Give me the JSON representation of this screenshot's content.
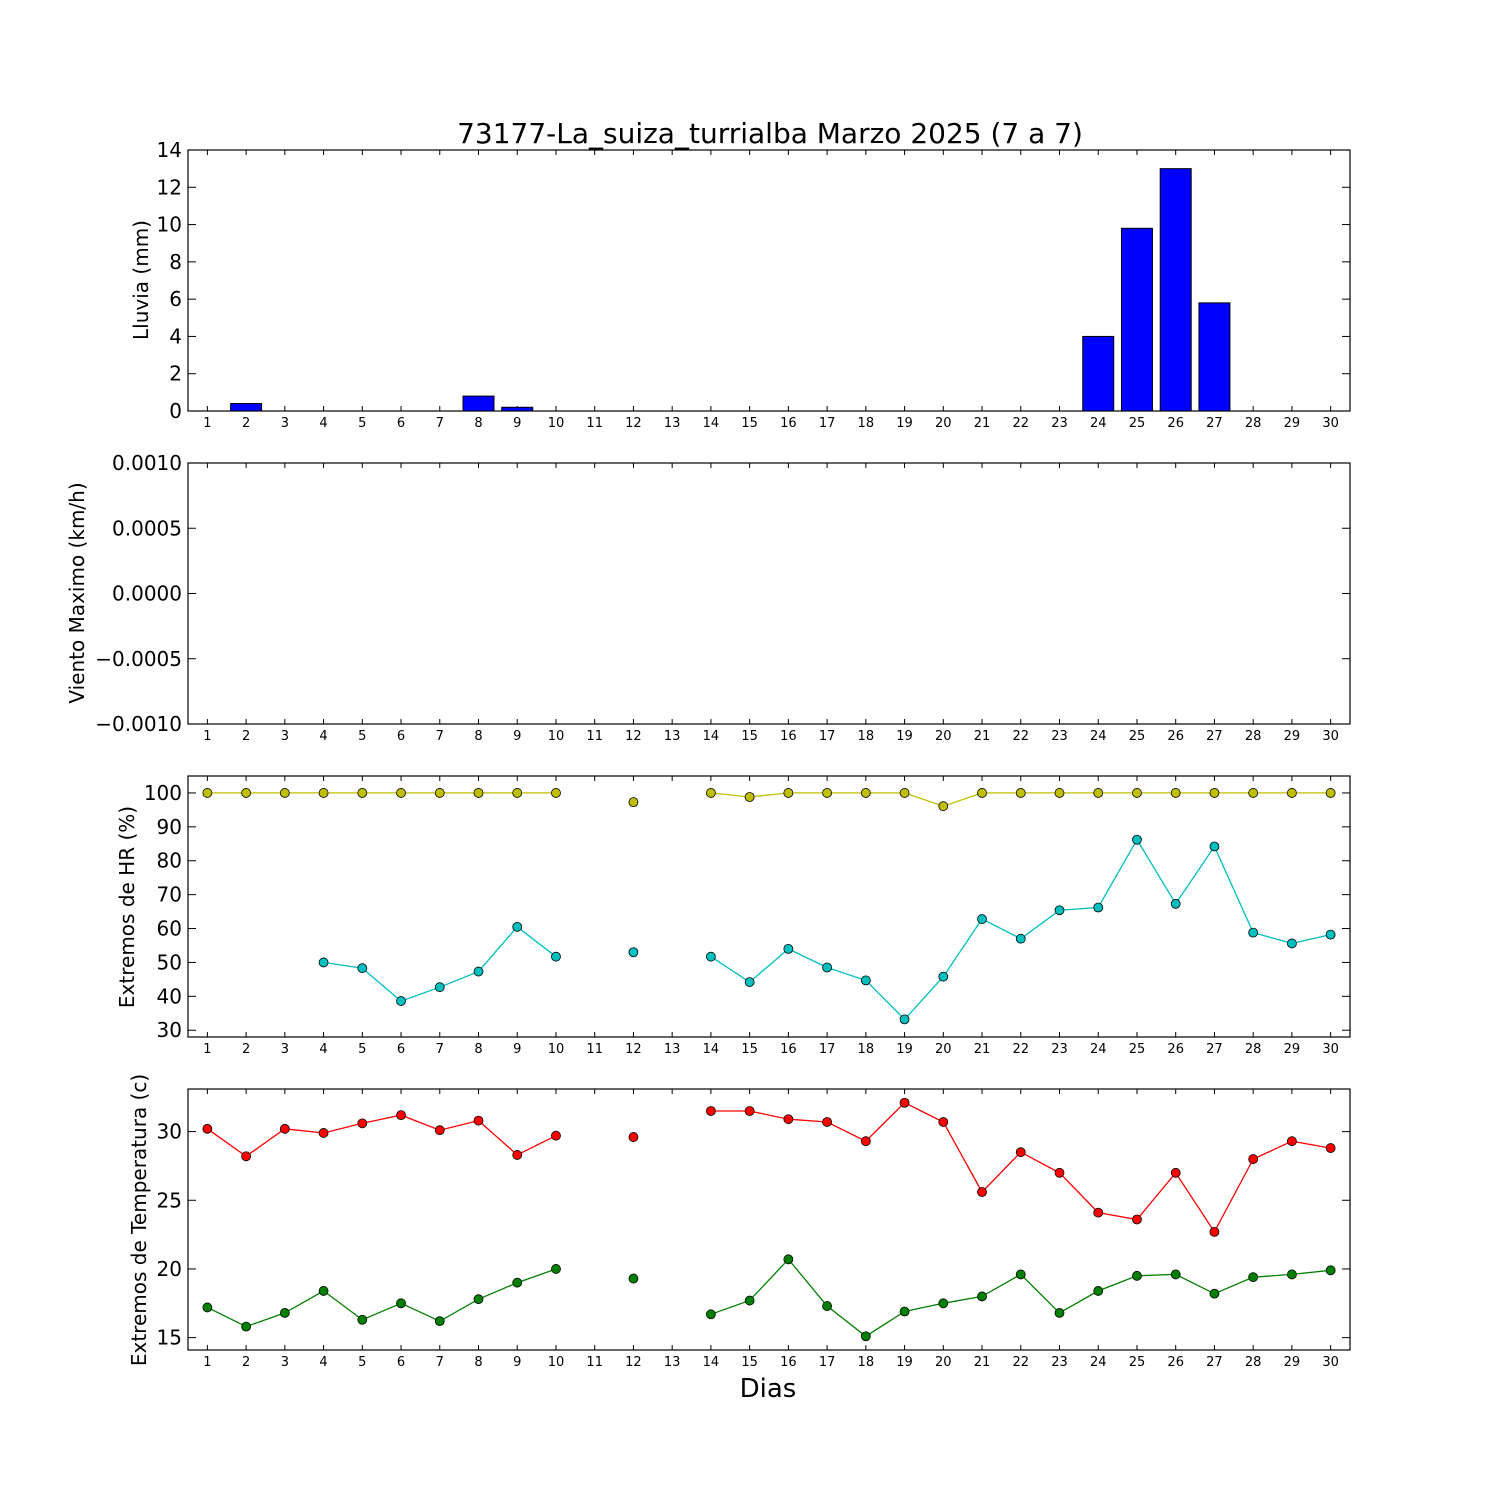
{
  "title": "73177-La_suiza_turrialba Marzo 2025  (7 a 7)",
  "xlabel": "Dias",
  "colors": {
    "bars": "#0000ff",
    "hr_max": "#bfbf00",
    "hr_min": "#00bfbf",
    "temp_max": "#ff0000",
    "temp_min": "#008000"
  },
  "chart_data": [
    {
      "type": "bar",
      "ylabel": "Lluvia (mm)",
      "categories": [
        "1",
        "2",
        "3",
        "4",
        "5",
        "6",
        "7",
        "8",
        "9",
        "10",
        "11",
        "12",
        "13",
        "14",
        "15",
        "16",
        "17",
        "18",
        "19",
        "20",
        "21",
        "22",
        "23",
        "24",
        "25",
        "26",
        "27",
        "28",
        "29",
        "30"
      ],
      "values": [
        0,
        0.4,
        0,
        0,
        0,
        0,
        0,
        0.8,
        0.2,
        0,
        0,
        0,
        0,
        0,
        0,
        0,
        0,
        0,
        0,
        0,
        0,
        0,
        0,
        4.0,
        9.8,
        13.0,
        5.8,
        0,
        0,
        0
      ],
      "ylim": [
        0,
        14
      ],
      "yticks": [
        "0",
        "2",
        "4",
        "6",
        "8",
        "10",
        "12",
        "14"
      ],
      "grid": false
    },
    {
      "type": "line",
      "ylabel": "Viento Maximo (km/h)",
      "categories": [
        "1",
        "2",
        "3",
        "4",
        "5",
        "6",
        "7",
        "8",
        "9",
        "10",
        "11",
        "12",
        "13",
        "14",
        "15",
        "16",
        "17",
        "18",
        "19",
        "20",
        "21",
        "22",
        "23",
        "24",
        "25",
        "26",
        "27",
        "28",
        "29",
        "30"
      ],
      "series": [],
      "ylim": [
        -0.001,
        0.001
      ],
      "yticks": [
        "−0.0010",
        "−0.0005",
        "0.0000",
        "0.0005",
        "0.0010"
      ],
      "grid": false
    },
    {
      "type": "line",
      "ylabel": "Extremos de HR (%)",
      "categories": [
        "1",
        "2",
        "3",
        "4",
        "5",
        "6",
        "7",
        "8",
        "9",
        "10",
        "11",
        "12",
        "13",
        "14",
        "15",
        "16",
        "17",
        "18",
        "19",
        "20",
        "21",
        "22",
        "23",
        "24",
        "25",
        "26",
        "27",
        "28",
        "29",
        "30"
      ],
      "series": [
        {
          "values": [
            100,
            100,
            100,
            100,
            100,
            100,
            100,
            100,
            100,
            100,
            null,
            97.3,
            null,
            100,
            98.8,
            100,
            100,
            100,
            100,
            96.1,
            100,
            100,
            100,
            100,
            100,
            100,
            100,
            100,
            100,
            100
          ]
        },
        {
          "values": [
            null,
            null,
            null,
            50,
            48.3,
            38.6,
            42.7,
            47.3,
            60.5,
            51.7,
            null,
            53,
            null,
            51.7,
            44.2,
            54,
            48.5,
            44.7,
            33.2,
            45.8,
            62.8,
            57,
            65.4,
            66.2,
            86.2,
            67.3,
            84.2,
            58.8,
            55.6,
            58.2
          ]
        }
      ],
      "ylim": [
        28,
        105
      ],
      "yticks": [
        "30",
        "40",
        "50",
        "60",
        "70",
        "80",
        "90",
        "100"
      ],
      "grid": false
    },
    {
      "type": "line",
      "ylabel": "Extremos de Temperatura (c)",
      "categories": [
        "1",
        "2",
        "3",
        "4",
        "5",
        "6",
        "7",
        "8",
        "9",
        "10",
        "11",
        "12",
        "13",
        "14",
        "15",
        "16",
        "17",
        "18",
        "19",
        "20",
        "21",
        "22",
        "23",
        "24",
        "25",
        "26",
        "27",
        "28",
        "29",
        "30"
      ],
      "series": [
        {
          "values": [
            30.2,
            28.2,
            30.2,
            29.9,
            30.6,
            31.2,
            30.1,
            30.8,
            28.3,
            29.7,
            null,
            29.6,
            null,
            31.5,
            31.5,
            30.9,
            30.7,
            29.3,
            32.1,
            30.7,
            25.6,
            28.5,
            27.0,
            24.1,
            23.6,
            27.0,
            22.7,
            28.0,
            29.3,
            28.8
          ]
        },
        {
          "values": [
            17.2,
            15.8,
            16.8,
            18.4,
            16.3,
            17.5,
            16.2,
            17.8,
            19.0,
            20.0,
            null,
            19.3,
            null,
            16.7,
            17.7,
            20.7,
            17.3,
            15.1,
            16.9,
            17.5,
            18.0,
            19.6,
            16.8,
            18.4,
            19.5,
            19.6,
            18.2,
            19.4,
            19.6,
            19.9
          ]
        }
      ],
      "ylim": [
        14.1,
        33.1
      ],
      "yticks": [
        "15",
        "20",
        "25",
        "30"
      ],
      "grid": false
    }
  ]
}
